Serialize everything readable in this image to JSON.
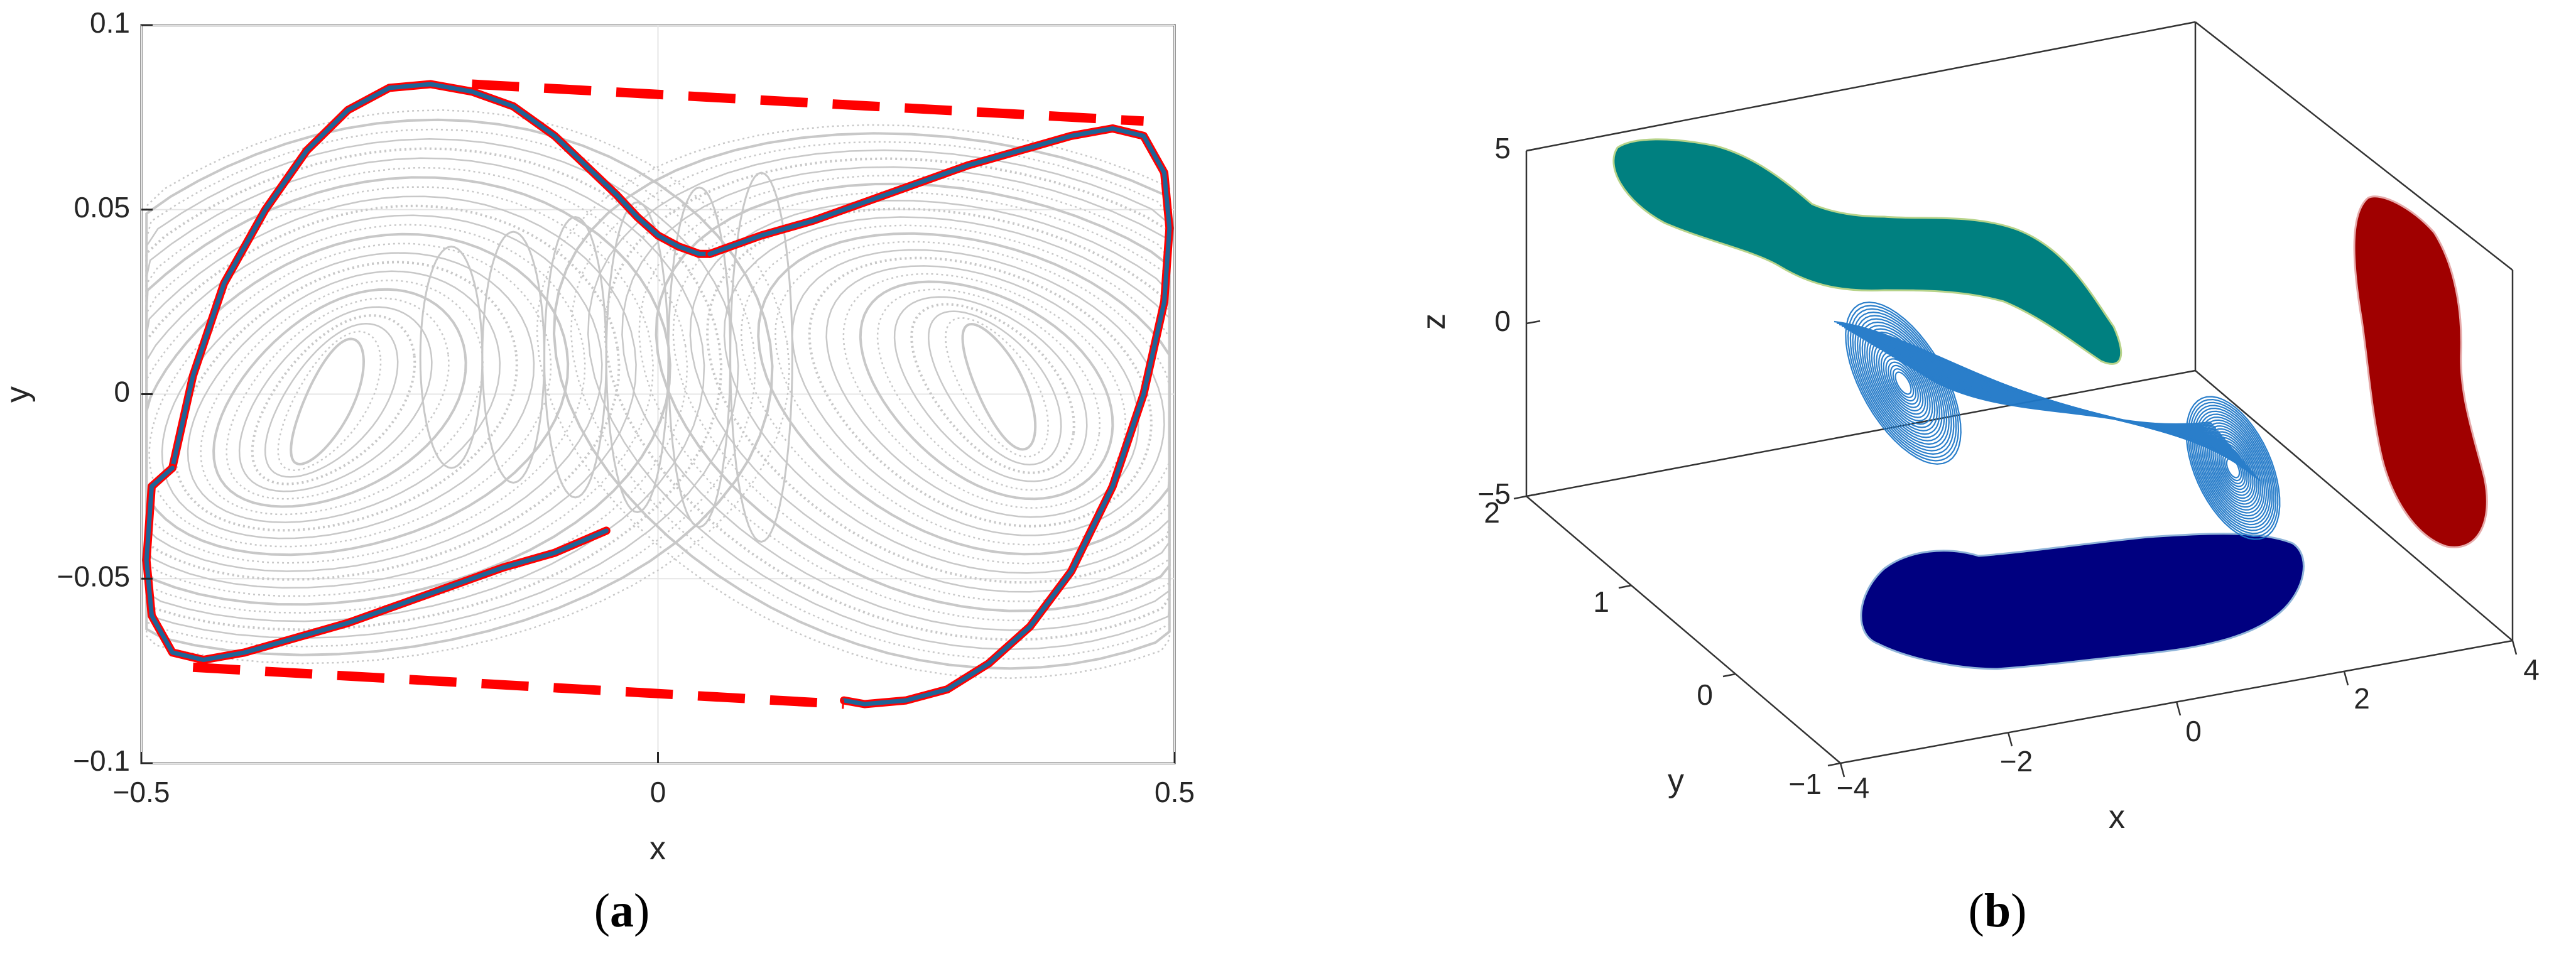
{
  "panels": {
    "a": {
      "open": "(",
      "letter": "a",
      "close": ")"
    },
    "b": {
      "open": "(",
      "letter": "b",
      "close": ")"
    }
  },
  "chart_data": [
    {
      "type": "line",
      "panel": "a",
      "xlabel": "x",
      "ylabel": "y",
      "xlim": [
        -0.5,
        0.5
      ],
      "ylim": [
        -0.1,
        0.1
      ],
      "xticks": [
        -0.5,
        0,
        0.5
      ],
      "xtick_labels": [
        "−0.5",
        "0",
        "0.5"
      ],
      "yticks": [
        -0.1,
        -0.05,
        0,
        0.05,
        0.1
      ],
      "ytick_labels": [
        "−0.1",
        "−0.05",
        "0",
        "0.05",
        "0.1"
      ],
      "grid": true,
      "colors": {
        "attractor": "#c8c8c8",
        "boundary": "#1f6396",
        "envelope": "#ff0000"
      },
      "series": [
        {
          "style": "solid",
          "x": [
            -0.47,
            -0.45,
            -0.42,
            -0.38,
            -0.34,
            -0.3,
            -0.26,
            -0.22,
            -0.18,
            -0.14,
            -0.1,
            -0.07,
            -0.04,
            -0.02,
            0,
            0.02,
            0.04,
            0.05
          ],
          "y": [
            -0.02,
            0.005,
            0.03,
            0.05,
            0.066,
            0.077,
            0.083,
            0.084,
            0.082,
            0.078,
            0.07,
            0.062,
            0.054,
            0.048,
            0.043,
            0.04,
            0.038,
            0.038
          ]
        },
        {
          "style": "solid",
          "x": [
            0.05,
            0.1,
            0.15,
            0.2,
            0.25,
            0.3,
            0.35,
            0.4,
            0.44,
            0.47,
            0.49,
            0.495,
            0.49,
            0.47,
            0.44,
            0.4,
            0.36,
            0.32,
            0.28,
            0.24,
            0.2,
            0.18
          ],
          "y": [
            0.038,
            0.043,
            0.047,
            0.052,
            0.057,
            0.062,
            0.066,
            0.07,
            0.072,
            0.07,
            0.06,
            0.045,
            0.025,
            0.0,
            -0.025,
            -0.048,
            -0.063,
            -0.073,
            -0.08,
            -0.083,
            -0.084,
            -0.083
          ]
        },
        {
          "style": "solid",
          "x": [
            -0.05,
            -0.1,
            -0.15,
            -0.2,
            -0.25,
            -0.3,
            -0.35,
            -0.4,
            -0.44,
            -0.47,
            -0.49,
            -0.495,
            -0.49,
            -0.47
          ],
          "y": [
            -0.037,
            -0.043,
            -0.047,
            -0.052,
            -0.057,
            -0.062,
            -0.066,
            -0.07,
            -0.072,
            -0.07,
            -0.06,
            -0.045,
            -0.025,
            -0.02
          ]
        },
        {
          "style": "dashed",
          "x": [
            -0.18,
            0.47
          ],
          "y": [
            0.084,
            0.074
          ]
        },
        {
          "style": "dashed",
          "x": [
            -0.45,
            0.18
          ],
          "y": [
            -0.074,
            -0.084
          ]
        }
      ]
    },
    {
      "type": "line",
      "panel": "b",
      "projection": "3d",
      "xlabel": "x",
      "ylabel": "y",
      "zlabel": "z",
      "xlim": [
        -4,
        4
      ],
      "ylim": [
        -1,
        2
      ],
      "zlim": [
        -5,
        5
      ],
      "xtick_labels": [
        "−4",
        "−2",
        "0",
        "2",
        "4"
      ],
      "ytick_labels": [
        "−1",
        "0",
        "1",
        "2"
      ],
      "ztick_labels": [
        "−5",
        "0",
        "5"
      ],
      "grid": false,
      "colors": {
        "trajectory": "#1f78c8",
        "projection_xz": "#008080",
        "projection_yz": "#a00000",
        "projection_xy": "#000080"
      }
    }
  ]
}
